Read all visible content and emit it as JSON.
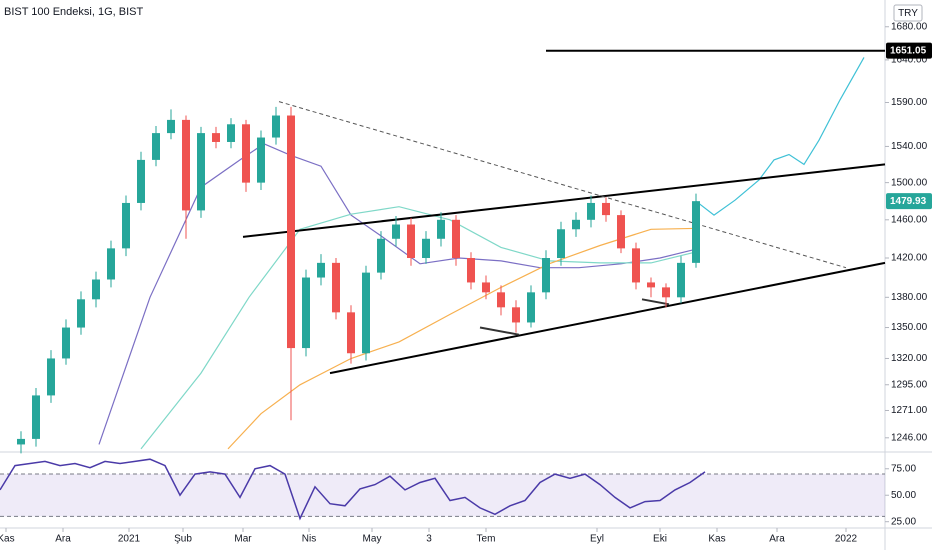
{
  "chart_data": [
    {
      "type": "candlestick",
      "title": "BIST 100 Endeksi, 1G, BIST",
      "currency": "TRY",
      "up_color": "#26a69a",
      "down_color": "#ef5350",
      "log_scale": true,
      "grid": false,
      "xlim": [
        0,
        295
      ],
      "xticks": [
        {
          "value": 2,
          "label": "Kas"
        },
        {
          "value": 21,
          "label": "Ara"
        },
        {
          "value": 43,
          "label": "2021"
        },
        {
          "value": 61,
          "label": "Şub"
        },
        {
          "value": 81,
          "label": "Mar"
        },
        {
          "value": 103,
          "label": "Nis"
        },
        {
          "value": 124,
          "label": "May"
        },
        {
          "value": 143,
          "label": "3"
        },
        {
          "value": 162,
          "label": "Tem"
        },
        {
          "value": 199,
          "label": "Eyl"
        },
        {
          "value": 220,
          "label": "Eki"
        },
        {
          "value": 239,
          "label": "Kas"
        },
        {
          "value": 259,
          "label": "Ara"
        },
        {
          "value": 282,
          "label": "2022"
        }
      ],
      "ylim": [
        1235,
        1713
      ],
      "yticks": [
        {
          "value": 1680,
          "label": "1680.00"
        },
        {
          "value": 1640,
          "label": "1640.00"
        },
        {
          "value": 1590,
          "label": "1590.00"
        },
        {
          "value": 1540,
          "label": "1540.00"
        },
        {
          "value": 1500,
          "label": "1500.00"
        },
        {
          "value": 1460,
          "label": "1460.00"
        },
        {
          "value": 1420,
          "label": "1420.00"
        },
        {
          "value": 1380,
          "label": "1380.00"
        },
        {
          "value": 1350,
          "label": "1350.00"
        },
        {
          "value": 1320,
          "label": "1320.00"
        },
        {
          "value": 1295,
          "label": "1295.00"
        },
        {
          "value": 1271,
          "label": "1271.00"
        },
        {
          "value": 1246,
          "label": "1246.00"
        }
      ],
      "x": [
        7,
        12,
        17,
        22,
        27,
        32,
        37,
        42,
        47,
        52,
        57,
        62,
        67,
        72,
        77,
        82,
        87,
        92,
        97,
        102,
        107,
        112,
        117,
        122,
        127,
        132,
        137,
        142,
        147,
        152,
        157,
        162,
        167,
        172,
        177,
        182,
        187,
        192,
        197,
        202,
        207,
        212,
        217,
        222,
        227,
        232
      ],
      "open": [
        1240,
        1245,
        1285,
        1320,
        1350,
        1378,
        1398,
        1430,
        1478,
        1525,
        1555,
        1570,
        1470,
        1555,
        1545,
        1565,
        1500,
        1550,
        1575,
        1330,
        1400,
        1415,
        1365,
        1325,
        1405,
        1440,
        1455,
        1420,
        1440,
        1460,
        1420,
        1395,
        1385,
        1370,
        1355,
        1385,
        1420,
        1450,
        1460,
        1478,
        1465,
        1430,
        1395,
        1390,
        1380,
        1415
      ],
      "high": [
        1252,
        1292,
        1328,
        1358,
        1386,
        1406,
        1438,
        1486,
        1534,
        1563,
        1582,
        1575,
        1562,
        1562,
        1572,
        1570,
        1558,
        1585,
        1585,
        1408,
        1424,
        1420,
        1372,
        1412,
        1448,
        1464,
        1462,
        1448,
        1468,
        1465,
        1426,
        1402,
        1392,
        1377,
        1392,
        1428,
        1458,
        1468,
        1486,
        1484,
        1470,
        1436,
        1400,
        1394,
        1422,
        1488
      ],
      "low": [
        1232,
        1238,
        1278,
        1314,
        1343,
        1370,
        1390,
        1422,
        1470,
        1518,
        1548,
        1440,
        1462,
        1538,
        1538,
        1490,
        1492,
        1542,
        1262,
        1322,
        1392,
        1358,
        1315,
        1318,
        1398,
        1432,
        1412,
        1414,
        1432,
        1412,
        1388,
        1378,
        1362,
        1345,
        1350,
        1378,
        1412,
        1442,
        1452,
        1458,
        1425,
        1388,
        1380,
        1370,
        1374,
        1410
      ],
      "close": [
        1245,
        1285,
        1320,
        1350,
        1378,
        1398,
        1430,
        1478,
        1525,
        1555,
        1570,
        1470,
        1555,
        1545,
        1565,
        1500,
        1550,
        1575,
        1330,
        1400,
        1415,
        1365,
        1325,
        1405,
        1440,
        1455,
        1420,
        1440,
        1460,
        1420,
        1395,
        1385,
        1370,
        1355,
        1385,
        1420,
        1450,
        1460,
        1478,
        1465,
        1430,
        1395,
        1390,
        1380,
        1415,
        1479.93
      ],
      "last_price_color": "#26a69a",
      "overlays": [
        {
          "color": "#7b6fc4",
          "x": [
            33,
            50,
            67,
            80,
            88,
            97,
            107,
            117,
            127,
            140,
            153,
            167,
            180,
            193,
            207,
            220,
            233
          ],
          "values": [
            1240,
            1380,
            1495,
            1525,
            1543,
            1530,
            1518,
            1465,
            1443,
            1414,
            1420,
            1417,
            1410,
            1410,
            1414,
            1420,
            1430
          ]
        },
        {
          "color": "#7fd8c8",
          "x": [
            47,
            67,
            83,
            100,
            117,
            133,
            150,
            167,
            183,
            200,
            217,
            233
          ],
          "values": [
            1236,
            1306,
            1380,
            1450,
            1466,
            1474,
            1460,
            1431,
            1417,
            1415,
            1415,
            1427
          ]
        },
        {
          "color": "#f7b04f",
          "x": [
            76,
            87,
            100,
            117,
            133,
            150,
            167,
            183,
            200,
            217,
            233
          ],
          "values": [
            1236,
            1268,
            1295,
            1320,
            1336,
            1363,
            1390,
            1414,
            1433,
            1450,
            1451
          ]
        },
        {
          "color": "#3fc1d6",
          "x": [
            232,
            238,
            245,
            253,
            258,
            263,
            268,
            273,
            280,
            288
          ],
          "values": [
            1479.93,
            1465,
            1481,
            1503,
            1525,
            1531,
            1520,
            1547,
            1593,
            1643
          ]
        }
      ],
      "trendlines": [
        {
          "color": "#000000",
          "dashed": false,
          "tag": true,
          "x": [
            182,
            295
          ],
          "values": [
            1651.05,
            1651.05
          ]
        },
        {
          "color": "#000000",
          "dashed": false,
          "x": [
            81,
            295
          ],
          "values": [
            1442,
            1520
          ]
        },
        {
          "color": "#000000",
          "dashed": false,
          "x": [
            110,
            295
          ],
          "values": [
            1306,
            1415
          ]
        },
        {
          "color": "#555555",
          "dashed": true,
          "x": [
            93,
            282
          ],
          "values": [
            1591,
            1410
          ]
        },
        {
          "color": "#333333",
          "dashed": false,
          "x": [
            160,
            173
          ],
          "values": [
            1350,
            1343
          ]
        },
        {
          "color": "#333333",
          "dashed": false,
          "x": [
            214,
            223
          ],
          "values": [
            1378,
            1373
          ]
        }
      ]
    },
    {
      "type": "line",
      "color": "#4a3aa8",
      "band_color": "rgba(126,87,194,0.12)",
      "bands": [
        30,
        70
      ],
      "ylim": [
        20,
        88
      ],
      "yticks": [
        {
          "value": 75,
          "label": "75.00"
        },
        {
          "value": 50,
          "label": "50.00"
        },
        {
          "value": 25,
          "label": "25.00"
        }
      ],
      "x": [
        0,
        5,
        10,
        15,
        20,
        25,
        30,
        35,
        40,
        45,
        50,
        55,
        60,
        65,
        70,
        75,
        80,
        85,
        90,
        95,
        100,
        105,
        110,
        115,
        120,
        125,
        130,
        135,
        140,
        145,
        150,
        155,
        160,
        165,
        170,
        175,
        180,
        185,
        190,
        195,
        200,
        205,
        210,
        215,
        220,
        225,
        230,
        235
      ],
      "values": [
        55,
        78,
        80,
        82,
        78,
        80,
        76,
        82,
        80,
        82,
        84,
        78,
        50,
        70,
        72,
        70,
        48,
        75,
        78,
        70,
        28,
        58,
        42,
        40,
        56,
        60,
        68,
        55,
        62,
        66,
        45,
        48,
        38,
        32,
        40,
        45,
        62,
        70,
        66,
        70,
        60,
        48,
        38,
        44,
        45,
        55,
        62,
        72
      ]
    }
  ]
}
